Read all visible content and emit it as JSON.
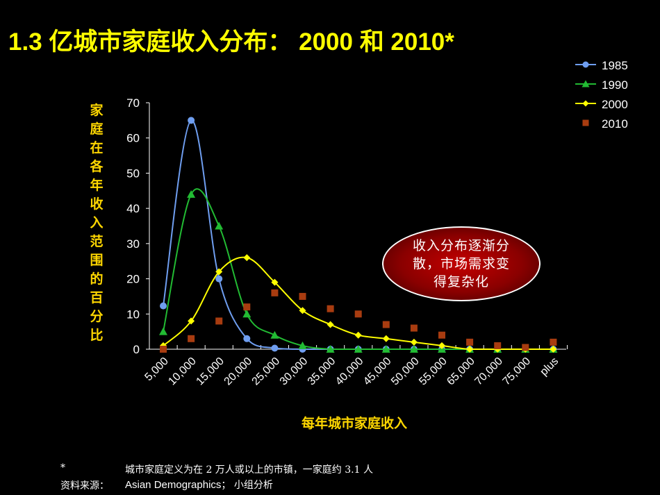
{
  "title": "1.3 亿城市家庭收入分布： 2000 和 2010*",
  "callout": "收入分布逐渐分散，市场需求变得复杂化",
  "footnote": {
    "marker": "*",
    "text": "城市家庭定义为在 2 万人或以上的市镇，一家庭约 3.1 人",
    "source_label": "资料来源：",
    "source_en": "Asian Demographics",
    "source_rest": "； 小组分析"
  },
  "chart_data": {
    "type": "line",
    "title": "1.3 亿城市家庭收入分布： 2000 和 2010*",
    "xlabel": "每年城市家庭收入",
    "ylabel": "家庭在各年收入范围的百分比",
    "ylim": [
      0,
      70
    ],
    "yticks": [
      0,
      10,
      20,
      30,
      40,
      50,
      60,
      70
    ],
    "categories": [
      "5,000",
      "10,000",
      "15,000",
      "20,000",
      "25,000",
      "30,000",
      "35,000",
      "40,000",
      "45,000",
      "50,000",
      "55,000",
      "65,000",
      "70,000",
      "75,000",
      "plus"
    ],
    "legend_position": "top-right",
    "grid": false,
    "series": [
      {
        "name": "1985",
        "color": "#6f9ef0",
        "marker": "circle",
        "smooth": true,
        "values": [
          12.3,
          65,
          20,
          3,
          0.3,
          0,
          0,
          0,
          0,
          0,
          0,
          0,
          0,
          0,
          0
        ]
      },
      {
        "name": "1990",
        "color": "#22bb33",
        "marker": "triangle",
        "smooth": true,
        "values": [
          5,
          44,
          35,
          10,
          4,
          1,
          0,
          0,
          0,
          0,
          0,
          0,
          0,
          0,
          0
        ]
      },
      {
        "name": "2000",
        "color": "#ffff00",
        "marker": "diamond",
        "smooth": true,
        "values": [
          1,
          8,
          22,
          26,
          19,
          11,
          7,
          4,
          3,
          2,
          1,
          0,
          0,
          0,
          0
        ]
      },
      {
        "name": "2010",
        "color": "#a83c10",
        "marker": "square",
        "smooth": false,
        "line": false,
        "values": [
          0,
          3,
          8,
          12,
          16,
          15,
          11.5,
          10,
          7,
          6,
          4,
          2,
          1,
          0.5,
          2
        ]
      }
    ]
  }
}
